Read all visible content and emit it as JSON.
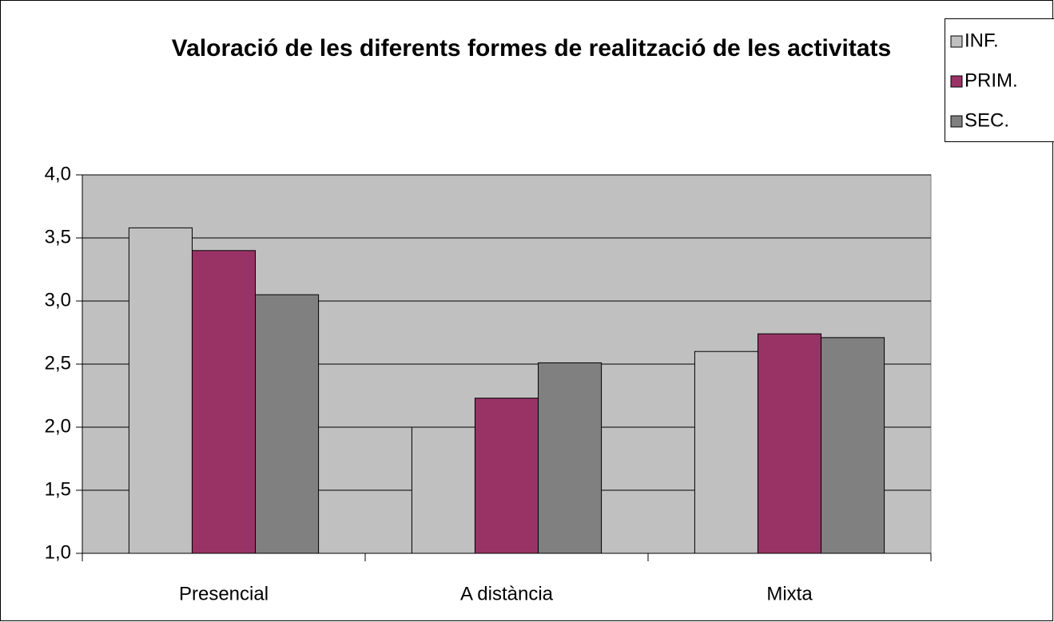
{
  "chart_data": {
    "type": "bar",
    "title": "Valoració de les diferents formes de realització de les activitats",
    "categories": [
      "Presencial",
      "A distància",
      "Mixta"
    ],
    "series": [
      {
        "name": "INF.",
        "color": "#c0c0c0",
        "values": [
          3.58,
          2.0,
          2.6
        ]
      },
      {
        "name": "PRIM.",
        "color": "#993366",
        "values": [
          3.4,
          2.23,
          2.74
        ]
      },
      {
        "name": "SEC.",
        "color": "#808080",
        "values": [
          3.05,
          2.51,
          2.71
        ]
      }
    ],
    "ylim": [
      1.0,
      4.0
    ],
    "yticks": [
      {
        "value": 1.0,
        "label": "1,0"
      },
      {
        "value": 1.5,
        "label": "1,5"
      },
      {
        "value": 2.0,
        "label": "2,0"
      },
      {
        "value": 2.5,
        "label": "2,5"
      },
      {
        "value": 3.0,
        "label": "3,0"
      },
      {
        "value": 3.5,
        "label": "3,5"
      },
      {
        "value": 4.0,
        "label": "4,0"
      }
    ],
    "grid": true,
    "plot_background": "#c0c0c0",
    "legend": "top-right"
  }
}
